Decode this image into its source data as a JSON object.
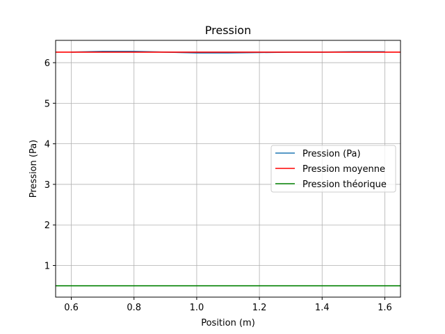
{
  "chart_data": {
    "type": "line",
    "title": "Pression",
    "xlabel": "Position (m)",
    "ylabel": "Pression (Pa)",
    "xlim": [
      0.55,
      1.65
    ],
    "ylim": [
      0.22,
      6.55
    ],
    "xticks": [
      0.6,
      0.8,
      1.0,
      1.2,
      1.4,
      1.6
    ],
    "xtick_labels": [
      "0.6",
      "0.8",
      "1.0",
      "1.2",
      "1.4",
      "1.6"
    ],
    "yticks": [
      1,
      2,
      3,
      4,
      5,
      6
    ],
    "ytick_labels": [
      "1",
      "2",
      "3",
      "4",
      "5",
      "6"
    ],
    "grid": true,
    "legend_position": "center-right",
    "series": [
      {
        "name": "Pression (Pa)",
        "color": "#1f77b4",
        "x": [
          0.6,
          0.7,
          0.8,
          0.9,
          1.0,
          1.1,
          1.2,
          1.3,
          1.4,
          1.5,
          1.6
        ],
        "y": [
          6.26,
          6.28,
          6.28,
          6.26,
          6.24,
          6.24,
          6.25,
          6.26,
          6.26,
          6.27,
          6.27
        ]
      },
      {
        "name": "Pression moyenne",
        "color": "#ff0000",
        "x": [
          0.55,
          1.65
        ],
        "y": [
          6.26,
          6.26
        ]
      },
      {
        "name": "Pression théorique",
        "color": "#008000",
        "x": [
          0.55,
          1.65
        ],
        "y": [
          0.5,
          0.5
        ]
      }
    ]
  }
}
